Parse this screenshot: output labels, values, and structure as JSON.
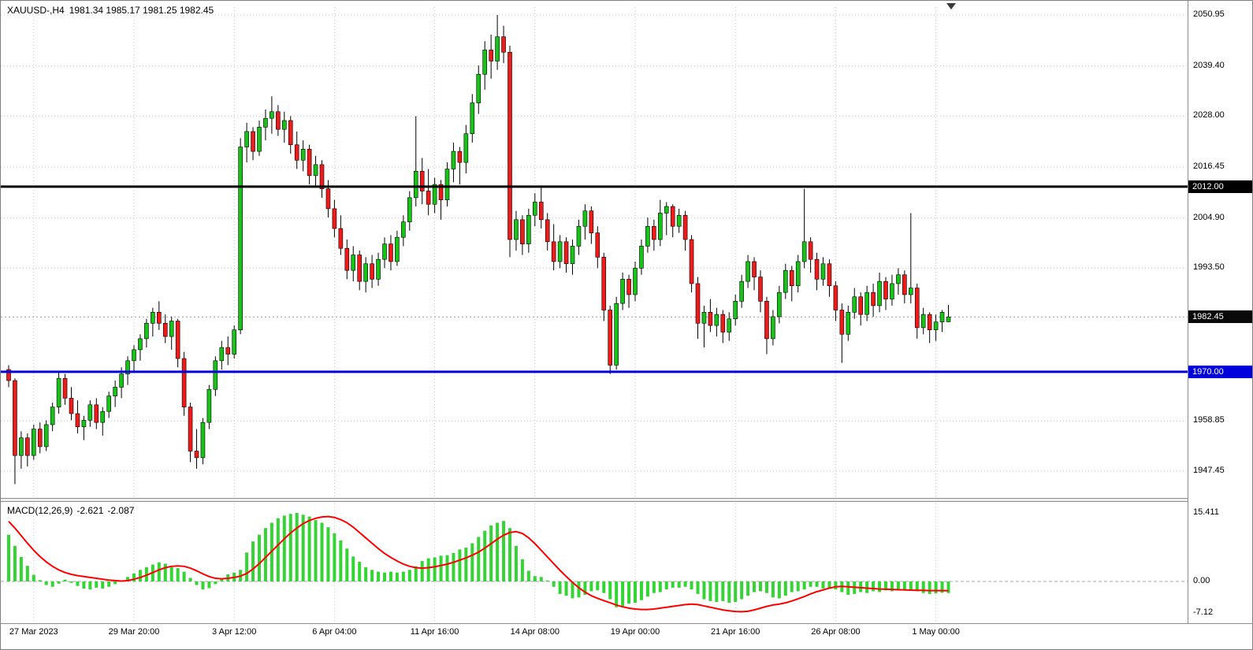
{
  "header": {
    "symbol_period": "XAUUSD-,H4",
    "ohlc": "1981.34 1985.17 1981.25 1982.45"
  },
  "macd_panel": {
    "label": "MACD(12,26,9)",
    "main_value": "-2.621",
    "signal_value": "-2.087",
    "scale_ticks": [
      {
        "value": 15.411,
        "label": "15.411"
      },
      {
        "value": 0,
        "label": "0.00"
      },
      {
        "value": -7.12,
        "label": "-7.12"
      }
    ]
  },
  "colors": {
    "background": "#ffffff",
    "grid": "#c9c9c9",
    "candle_up": "#17c317",
    "candle_down": "#ef1a1a",
    "wick": "#000000",
    "histogram": "#35d435",
    "signal": "#ff0000",
    "resistance_line": "#000000",
    "support_line": "#0000dc",
    "current_badge_bg": "#0a0a0a"
  },
  "chart_data": [
    {
      "type": "candlestick",
      "symbol": "XAUUSD-",
      "timeframe": "H4",
      "last_bar": {
        "open": 1981.34,
        "high": 1985.17,
        "low": 1981.25,
        "close": 1982.45
      },
      "current_price": 1982.45,
      "ylim": [
        1941.5,
        2052.7
      ],
      "price_ticks": [
        2050.95,
        2039.4,
        2028.0,
        2016.45,
        2004.9,
        1993.5,
        1958.85,
        1947.45
      ],
      "hlines": [
        {
          "price": 2012.0,
          "label": "2012.00",
          "color": "#000000"
        },
        {
          "price": 1970.0,
          "label": "1970.00",
          "color": "#0000dc"
        }
      ],
      "time_labels": [
        {
          "index": 4,
          "label": "27 Mar 2023"
        },
        {
          "index": 20,
          "label": "29 Mar 20:00"
        },
        {
          "index": 36,
          "label": "3 Apr 12:00"
        },
        {
          "index": 52,
          "label": "6 Apr 04:00"
        },
        {
          "index": 68,
          "label": "11 Apr 16:00"
        },
        {
          "index": 84,
          "label": "14 Apr 08:00"
        },
        {
          "index": 100,
          "label": "19 Apr 00:00"
        },
        {
          "index": 116,
          "label": "21 Apr 16:00"
        },
        {
          "index": 132,
          "label": "26 Apr 08:00"
        },
        {
          "index": 148,
          "label": "1 May 00:00"
        }
      ],
      "ohlc": [
        [
          1970.5,
          1971.5,
          1966.5,
          1968
        ],
        [
          1968,
          1968.5,
          1944.5,
          1951
        ],
        [
          1951,
          1956.5,
          1948,
          1955
        ],
        [
          1955,
          1956,
          1948.5,
          1951
        ],
        [
          1951,
          1958,
          1950,
          1957
        ],
        [
          1957,
          1958.5,
          1951.5,
          1953
        ],
        [
          1953,
          1959,
          1952,
          1958
        ],
        [
          1958,
          1963,
          1956.5,
          1962
        ],
        [
          1962,
          1970,
          1960.5,
          1968.5
        ],
        [
          1968.5,
          1969.5,
          1962.5,
          1964
        ],
        [
          1964,
          1966.5,
          1959,
          1960.5
        ],
        [
          1960.5,
          1963.5,
          1956,
          1957.5
        ],
        [
          1957.5,
          1960,
          1954.5,
          1959
        ],
        [
          1959,
          1963.5,
          1957.5,
          1962.5
        ],
        [
          1962.5,
          1964,
          1957,
          1958.5
        ],
        [
          1958.5,
          1962,
          1955.5,
          1961
        ],
        [
          1961,
          1965.5,
          1959.5,
          1964.5
        ],
        [
          1964.5,
          1968,
          1962,
          1966.5
        ],
        [
          1966.5,
          1971,
          1964,
          1969.5
        ],
        [
          1969.5,
          1973.5,
          1967,
          1972.5
        ],
        [
          1972.5,
          1976,
          1970,
          1975
        ],
        [
          1975,
          1978.5,
          1972.5,
          1977.5
        ],
        [
          1977.5,
          1982,
          1975.5,
          1981
        ],
        [
          1981,
          1984.5,
          1978,
          1983.5
        ],
        [
          1983.5,
          1986,
          1979.5,
          1981
        ],
        [
          1981,
          1983,
          1976.5,
          1978
        ],
        [
          1978,
          1982.5,
          1975,
          1981.5
        ],
        [
          1981.5,
          1982,
          1971,
          1973
        ],
        [
          1973,
          1974.5,
          1960,
          1962
        ],
        [
          1962,
          1963,
          1949.5,
          1952
        ],
        [
          1952,
          1957,
          1948,
          1950.5
        ],
        [
          1950.5,
          1959.5,
          1949,
          1958.5
        ],
        [
          1958.5,
          1967,
          1957,
          1966
        ],
        [
          1966,
          1973.5,
          1964.5,
          1972.5
        ],
        [
          1972.5,
          1977,
          1970.5,
          1975.5
        ],
        [
          1975.5,
          1978,
          1971.5,
          1974
        ],
        [
          1974,
          1980.5,
          1973,
          1979.5
        ],
        [
          1979.5,
          2023,
          1978.5,
          2021
        ],
        [
          2021,
          2026.5,
          2017.5,
          2024.5
        ],
        [
          2024.5,
          2025.5,
          2018,
          2020
        ],
        [
          2020,
          2027,
          2019,
          2025.5
        ],
        [
          2025.5,
          2029.5,
          2022.5,
          2027.5
        ],
        [
          2027.5,
          2032.5,
          2024,
          2029
        ],
        [
          2029,
          2030.5,
          2023.5,
          2025
        ],
        [
          2025,
          2029,
          2022,
          2027
        ],
        [
          2027,
          2028,
          2019.5,
          2021.5
        ],
        [
          2021.5,
          2024.5,
          2016,
          2018
        ],
        [
          2018,
          2022.5,
          2015.5,
          2020.5
        ],
        [
          2020.5,
          2021.5,
          2012.5,
          2014.5
        ],
        [
          2014.5,
          2019,
          2012,
          2017
        ],
        [
          2017,
          2018,
          2009.5,
          2011.5
        ],
        [
          2011.5,
          2013.5,
          2005,
          2007
        ],
        [
          2007,
          2009,
          2000.5,
          2002.5
        ],
        [
          2002.5,
          2005.5,
          1996.5,
          1998
        ],
        [
          1998,
          2000,
          1991,
          1993
        ],
        [
          1993,
          1998.5,
          1990.5,
          1996.5
        ],
        [
          1996.5,
          1997.5,
          1988.5,
          1990.5
        ],
        [
          1990.5,
          1996,
          1988,
          1994.5
        ],
        [
          1994.5,
          1996.5,
          1989,
          1991
        ],
        [
          1991,
          1997,
          1989.5,
          1995.5
        ],
        [
          1995.5,
          2000.5,
          1993.5,
          1999
        ],
        [
          1999,
          2001,
          1993,
          1995
        ],
        [
          1995,
          2002,
          1994,
          2000.5
        ],
        [
          2000.5,
          2005.5,
          1998.5,
          2004
        ],
        [
          2004,
          2011,
          2002,
          2009.5
        ],
        [
          2009.5,
          2028,
          2007.5,
          2015.5
        ],
        [
          2015.5,
          2018.5,
          2008,
          2011
        ],
        [
          2011,
          2016,
          2005.5,
          2008
        ],
        [
          2008,
          2014,
          2006,
          2012.5
        ],
        [
          2012.5,
          2013.5,
          2004.5,
          2009
        ],
        [
          2009,
          2017.5,
          2007.5,
          2016
        ],
        [
          2016,
          2022,
          2013,
          2020
        ],
        [
          2020,
          2021,
          2012.5,
          2017.5
        ],
        [
          2017.5,
          2026,
          2015,
          2024
        ],
        [
          2024,
          2033,
          2022,
          2031
        ],
        [
          2031,
          2039.5,
          2028.5,
          2037.5
        ],
        [
          2037.5,
          2045,
          2034,
          2043
        ],
        [
          2043,
          2046.5,
          2036.5,
          2040.5
        ],
        [
          2040.5,
          2050.95,
          2038.5,
          2046
        ],
        [
          2046,
          2048.5,
          2040,
          2042.5
        ],
        [
          2042.5,
          2044,
          1996,
          2000
        ],
        [
          2000,
          2006.5,
          1997.5,
          2004.5
        ],
        [
          2004.5,
          2005.5,
          1996.5,
          1999
        ],
        [
          1999,
          2007,
          1997,
          2005.5
        ],
        [
          2005.5,
          2010.5,
          2003,
          2008.5
        ],
        [
          2008.5,
          2012,
          2002.5,
          2004.5
        ],
        [
          2004.5,
          2006,
          1997.5,
          1999.5
        ],
        [
          1999.5,
          2003.5,
          1993,
          1995
        ],
        [
          1995,
          2001,
          1993.5,
          1999.5
        ],
        [
          1999.5,
          2000.5,
          1992.5,
          1994.5
        ],
        [
          1994.5,
          2000,
          1992,
          1998.5
        ],
        [
          1998.5,
          2004.5,
          1996.5,
          2003
        ],
        [
          2003,
          2008,
          2000,
          2006.5
        ],
        [
          2006.5,
          2007.5,
          1999,
          2001.5
        ],
        [
          2001.5,
          2003,
          1993.5,
          1996
        ],
        [
          1996,
          1997,
          1981.5,
          1984
        ],
        [
          1984,
          1985,
          1969.5,
          1971.5
        ],
        [
          1971.5,
          1987,
          1970.5,
          1985.5
        ],
        [
          1985.5,
          1992.5,
          1984,
          1991
        ],
        [
          1991,
          1992,
          1984.5,
          1987.5
        ],
        [
          1987.5,
          1995,
          1986,
          1993.5
        ],
        [
          1993.5,
          2000,
          1992,
          1998.5
        ],
        [
          1998.5,
          2005,
          1997,
          2003
        ],
        [
          2003,
          2004.5,
          1997.5,
          2000
        ],
        [
          2000,
          2009,
          1998.5,
          2006
        ],
        [
          2006,
          2008.5,
          2001,
          2007.5
        ],
        [
          2007.5,
          2008,
          2000.5,
          2003
        ],
        [
          2003,
          2007,
          2001.5,
          2005.5
        ],
        [
          2005.5,
          2006.5,
          1997.5,
          2000
        ],
        [
          2000,
          2001,
          1988,
          1990
        ],
        [
          1990,
          1991.5,
          1977.5,
          1981
        ],
        [
          1981,
          1985,
          1975.5,
          1983.5
        ],
        [
          1983.5,
          1986.5,
          1979,
          1980.5
        ],
        [
          1980.5,
          1984.5,
          1978,
          1983
        ],
        [
          1983,
          1984,
          1976.5,
          1979
        ],
        [
          1979,
          1983.5,
          1977,
          1982
        ],
        [
          1982,
          1987.5,
          1980.5,
          1986
        ],
        [
          1986,
          1992,
          1984.5,
          1990.5
        ],
        [
          1990.5,
          1996.5,
          1989,
          1995
        ],
        [
          1995,
          1996,
          1988.5,
          1991.5
        ],
        [
          1991.5,
          1993,
          1983.5,
          1986
        ],
        [
          1986,
          1987,
          1974,
          1977.5
        ],
        [
          1977.5,
          1984,
          1976,
          1982.5
        ],
        [
          1982.5,
          1989.5,
          1981,
          1988
        ],
        [
          1988,
          1994.5,
          1986.5,
          1993
        ],
        [
          1993,
          1994,
          1986,
          1989.5
        ],
        [
          1989.5,
          1996.5,
          1988,
          1995
        ],
        [
          1995,
          2011.5,
          1993.5,
          1999.5
        ],
        [
          1999.5,
          2000.5,
          1992.5,
          1995.5
        ],
        [
          1995.5,
          1997,
          1988.5,
          1991
        ],
        [
          1991,
          1996,
          1989.5,
          1994.5
        ],
        [
          1994.5,
          1995.5,
          1987,
          1989.5
        ],
        [
          1989.5,
          1990.5,
          1981.5,
          1984
        ],
        [
          1984,
          1985.5,
          1972,
          1978.5
        ],
        [
          1978.5,
          1985,
          1977,
          1983.5
        ],
        [
          1983.5,
          1989,
          1982,
          1987
        ],
        [
          1987,
          1988,
          1980.5,
          1983
        ],
        [
          1983,
          1989.5,
          1981.5,
          1988
        ],
        [
          1988,
          1990,
          1982.5,
          1985
        ],
        [
          1985,
          1992.5,
          1983.5,
          1990.5
        ],
        [
          1990.5,
          1991.5,
          1984,
          1986.5
        ],
        [
          1986.5,
          1992,
          1985,
          1990
        ],
        [
          1990,
          1993.5,
          1987.5,
          1992
        ],
        [
          1992,
          1993,
          1985.5,
          1987.5
        ],
        [
          1987.5,
          2006,
          1985.5,
          1989
        ],
        [
          1989,
          1990,
          1977.5,
          1980
        ],
        [
          1980,
          1984.5,
          1978.5,
          1983
        ],
        [
          1983,
          1983.5,
          1976.5,
          1979.5
        ],
        [
          1979.5,
          1983,
          1977,
          1981.3
        ],
        [
          1981.3,
          1984,
          1979,
          1983.5
        ],
        [
          1981.34,
          1985.17,
          1981.25,
          1982.45
        ]
      ]
    },
    {
      "type": "bar",
      "name": "MACD(12,26,9)",
      "ylim": [
        -9.0,
        17.2
      ],
      "histogram": [
        10.5,
        8.0,
        5.5,
        3.5,
        1.5,
        0.3,
        -0.8,
        -1.2,
        -0.5,
        0.4,
        -0.3,
        -1.0,
        -1.6,
        -1.8,
        -1.4,
        -1.6,
        -1.2,
        -0.6,
        0.2,
        1.0,
        1.8,
        2.6,
        3.2,
        3.8,
        4.3,
        4.0,
        3.2,
        3.0,
        2.2,
        0.8,
        -0.8,
        -1.8,
        -1.5,
        -0.6,
        0.6,
        1.6,
        2.0,
        2.6,
        6.5,
        9.0,
        10.5,
        12.0,
        13.2,
        14.2,
        14.8,
        15.2,
        15.411,
        15.0,
        14.6,
        13.8,
        13.2,
        12.2,
        10.8,
        9.2,
        7.4,
        5.6,
        4.4,
        3.2,
        2.6,
        2.2,
        2.0,
        2.2,
        2.0,
        2.2,
        2.6,
        3.4,
        4.6,
        5.2,
        5.4,
        5.8,
        5.9,
        6.4,
        7.2,
        7.6,
        8.6,
        10.0,
        11.4,
        12.6,
        13.2,
        13.6,
        12.0,
        8.0,
        5.0,
        2.4,
        1.2,
        1.0,
        0.2,
        -1.2,
        -2.8,
        -3.2,
        -3.8,
        -3.6,
        -3.0,
        -2.2,
        -2.0,
        -2.6,
        -4.0,
        -5.8,
        -5.6,
        -5.0,
        -4.8,
        -4.2,
        -3.4,
        -2.6,
        -2.4,
        -1.8,
        -1.4,
        -1.4,
        -1.2,
        -1.8,
        -2.8,
        -4.0,
        -4.4,
        -4.6,
        -4.4,
        -4.8,
        -4.6,
        -4.0,
        -3.2,
        -2.4,
        -2.2,
        -2.6,
        -3.6,
        -3.8,
        -3.2,
        -2.4,
        -2.2,
        -1.8,
        -1.2,
        -1.2,
        -1.6,
        -1.6,
        -1.8,
        -2.4,
        -3.0,
        -2.8,
        -2.4,
        -2.6,
        -2.2,
        -2.4,
        -2.0,
        -2.2,
        -2.0,
        -1.8,
        -2.0,
        -2.2,
        -2.6,
        -2.8,
        -2.7,
        -2.55,
        -2.621
      ],
      "signal": [
        13.5,
        12.0,
        10.3,
        8.6,
        7.0,
        5.6,
        4.4,
        3.4,
        2.6,
        2.0,
        1.6,
        1.3,
        1.1,
        0.9,
        0.7,
        0.5,
        0.3,
        0.2,
        0.1,
        0.2,
        0.5,
        0.9,
        1.4,
        2.0,
        2.6,
        3.1,
        3.4,
        3.5,
        3.4,
        3.0,
        2.4,
        1.7,
        1.1,
        0.7,
        0.6,
        0.7,
        0.9,
        1.2,
        1.8,
        2.8,
        4.0,
        5.4,
        6.8,
        8.2,
        9.6,
        10.9,
        12.0,
        13.0,
        13.7,
        14.2,
        14.5,
        14.6,
        14.4,
        13.9,
        13.2,
        12.2,
        11.0,
        9.8,
        8.6,
        7.4,
        6.3,
        5.4,
        4.6,
        3.9,
        3.4,
        3.1,
        3.0,
        3.1,
        3.3,
        3.6,
        3.9,
        4.3,
        4.8,
        5.3,
        5.9,
        6.6,
        7.5,
        8.5,
        9.5,
        10.4,
        11.0,
        11.2,
        10.8,
        9.8,
        8.5,
        7.0,
        5.5,
        4.0,
        2.5,
        1.1,
        -0.2,
        -1.4,
        -2.4,
        -3.2,
        -3.8,
        -4.3,
        -4.8,
        -5.3,
        -5.7,
        -6.0,
        -6.2,
        -6.3,
        -6.3,
        -6.2,
        -6.0,
        -5.8,
        -5.6,
        -5.4,
        -5.2,
        -5.1,
        -5.2,
        -5.5,
        -5.8,
        -6.1,
        -6.4,
        -6.6,
        -6.75,
        -6.8,
        -6.7,
        -6.4,
        -6.0,
        -5.6,
        -5.3,
        -5.1,
        -4.8,
        -4.4,
        -3.9,
        -3.4,
        -2.8,
        -2.3,
        -1.9,
        -1.5,
        -1.2,
        -1.1,
        -1.2,
        -1.3,
        -1.4,
        -1.5,
        -1.6,
        -1.7,
        -1.75,
        -1.8,
        -1.85,
        -1.9,
        -1.95,
        -2.0,
        -2.0,
        -2.05,
        -2.06,
        -2.07,
        -2.087
      ]
    }
  ]
}
